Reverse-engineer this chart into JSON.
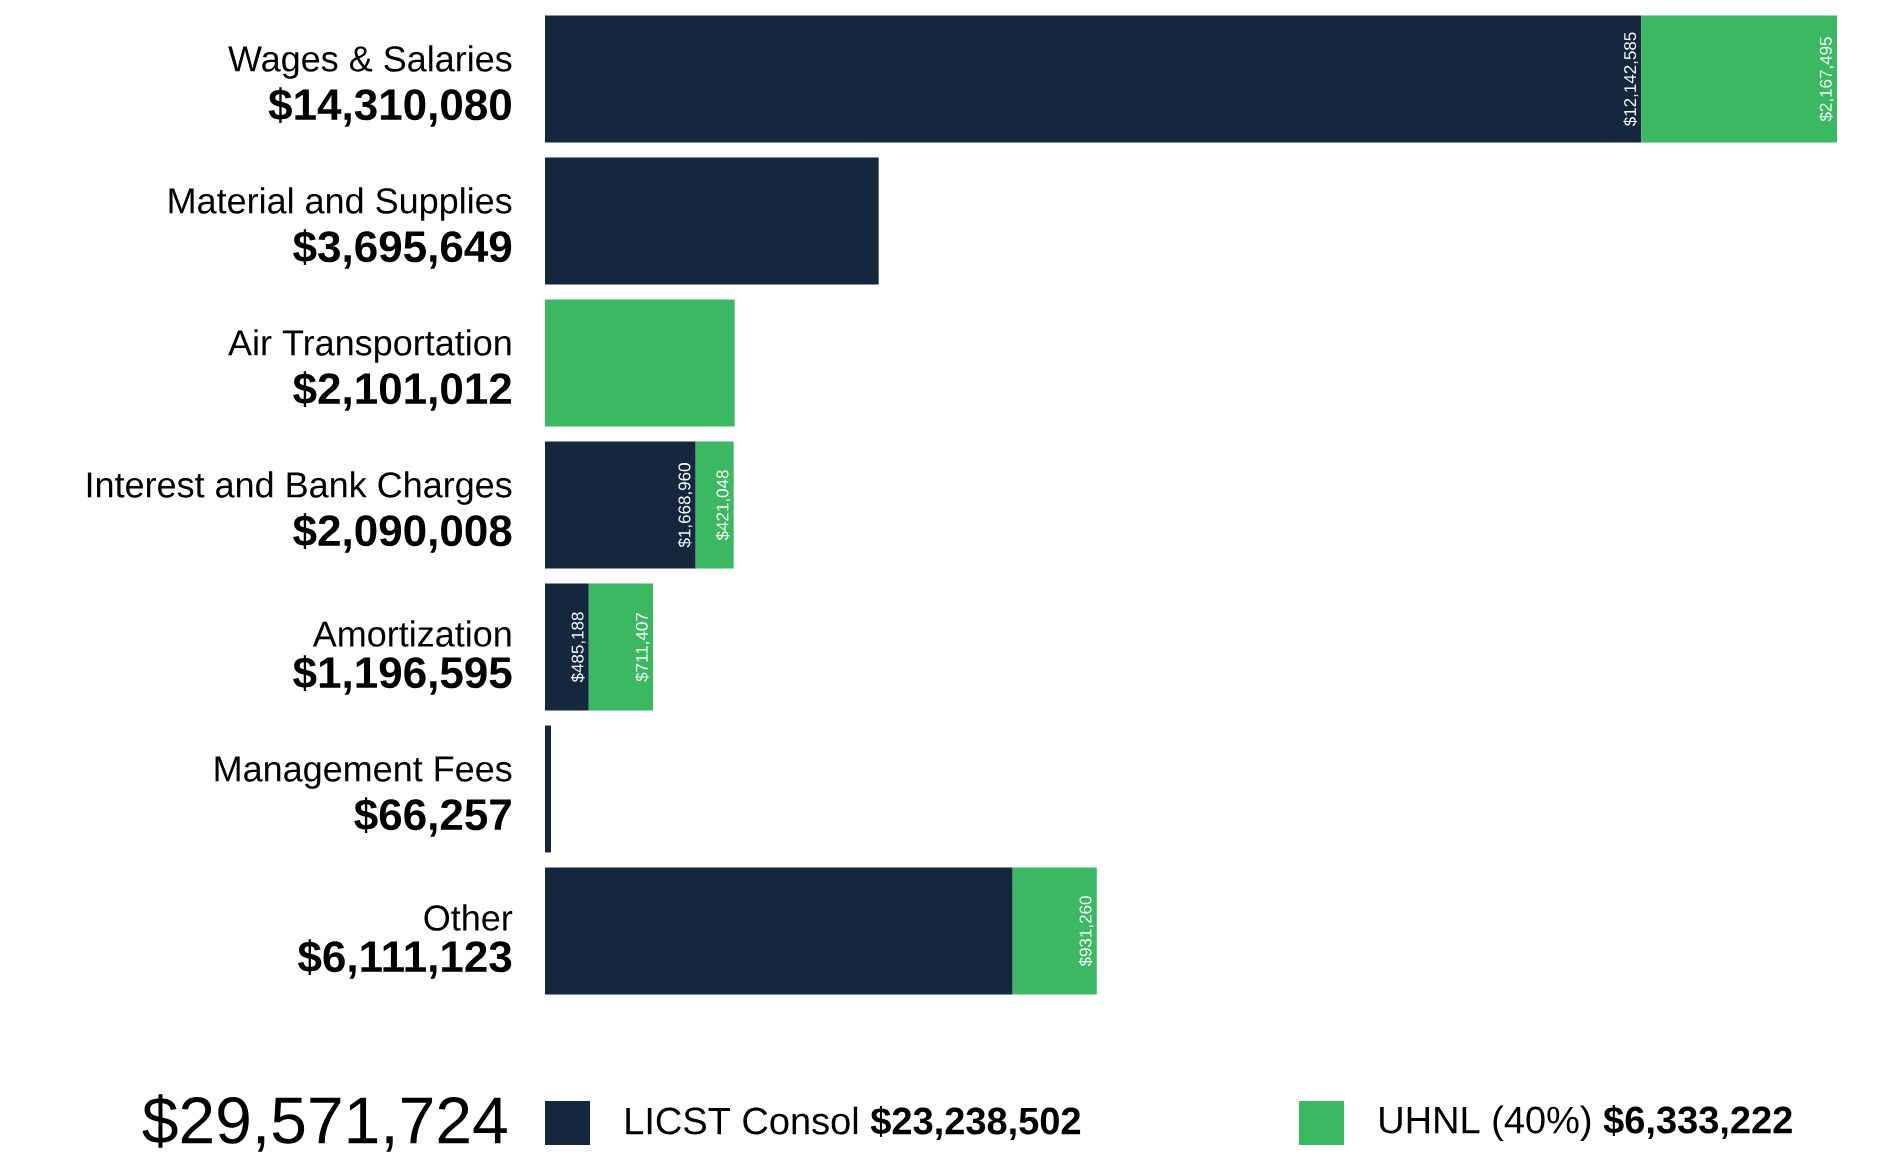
{
  "chart_data": {
    "type": "bar",
    "orientation": "horizontal",
    "stacked": true,
    "legend": "bottom",
    "categories": [
      "Wages & Salaries",
      "Material and Supplies",
      "Air Transportation",
      "Interest and Bank Charges",
      "Amortization",
      "Management Fees",
      "Other"
    ],
    "totals": [
      "$14,310,080",
      "$3,695,649",
      "$2,101,012",
      "$2,090,008",
      "$1,196,595",
      "$66,257",
      "$6,111,123"
    ],
    "series": [
      {
        "name": "LICST Consol **$23,238,502**",
        "color": "#15273f",
        "values": [
          12142585,
          3695649,
          null,
          1668960,
          485188,
          66257,
          5179863
        ],
        "value_labels": [
          "$12,142,585",
          null,
          null,
          "$1,668,960",
          "$485,188",
          null,
          null
        ]
      },
      {
        "name": "UHNL (40%) **$6,333,222**",
        "color": "#3ab862",
        "values": [
          2167495,
          null,
          2101012,
          421048,
          711407,
          null,
          931260
        ],
        "value_labels": [
          "$2,167,495",
          null,
          null,
          "$421,048",
          "$711,407",
          null,
          "$931,260"
        ]
      }
    ],
    "annotations": [
      "$29,571,724"
    ]
  }
}
